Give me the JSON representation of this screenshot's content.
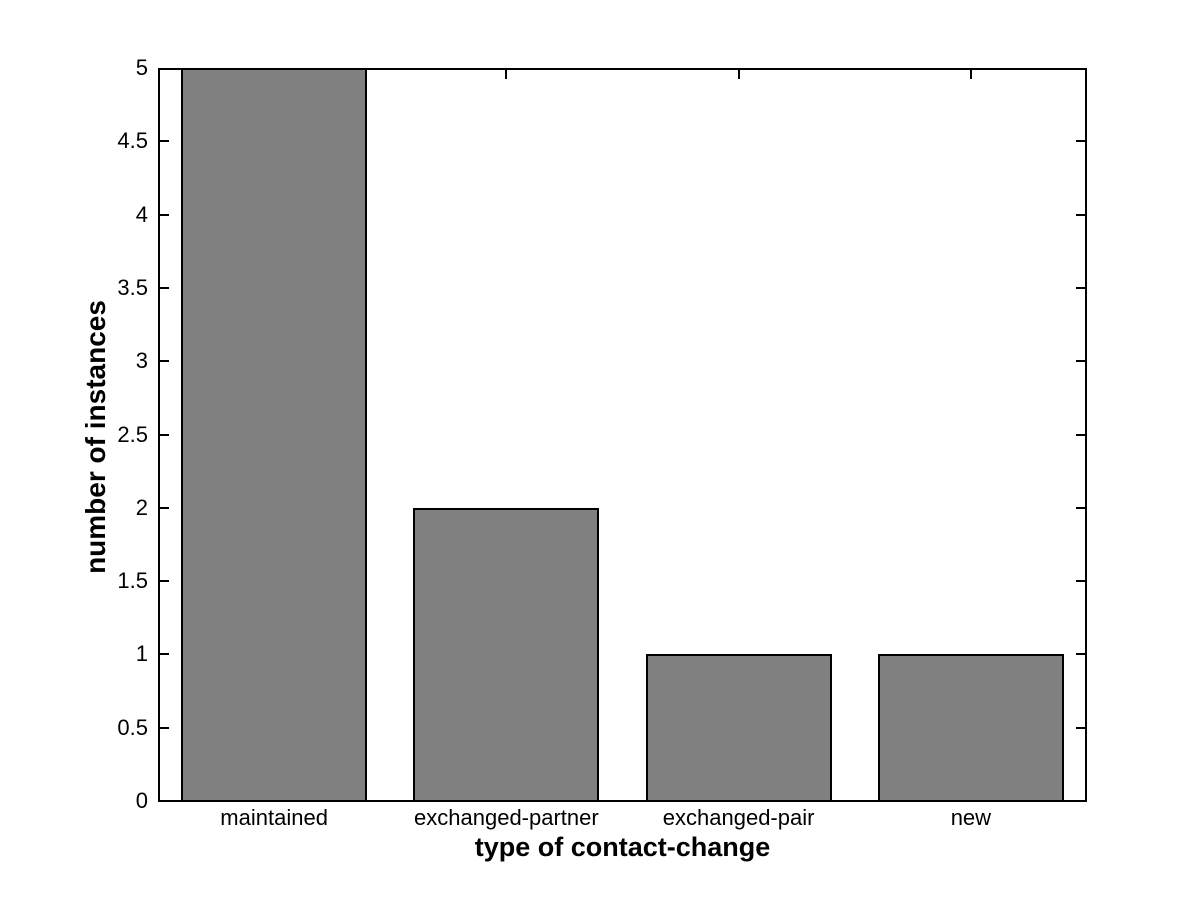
{
  "chart_data": {
    "type": "bar",
    "title": "",
    "xlabel": "type of contact-change",
    "ylabel": "number of instances",
    "categories": [
      "maintained",
      "exchanged-partner",
      "exchanged-pair",
      "new"
    ],
    "values": [
      5,
      2,
      1,
      1
    ],
    "ylim": [
      0,
      5
    ],
    "yticks": [
      0,
      0.5,
      1,
      1.5,
      2,
      2.5,
      3,
      3.5,
      4,
      4.5,
      5
    ],
    "ytick_labels": [
      "0",
      "0.5",
      "1",
      "1.5",
      "2",
      "2.5",
      "3",
      "3.5",
      "4",
      "4.5",
      "5"
    ],
    "bar_width_fraction": 0.8,
    "grid": false,
    "legend": null,
    "tick_direction": "in",
    "colors": {
      "bar_fill": "#808080",
      "bar_edge": "#000000",
      "axis": "#000000",
      "background": "#ffffff",
      "text": "#000000"
    }
  }
}
